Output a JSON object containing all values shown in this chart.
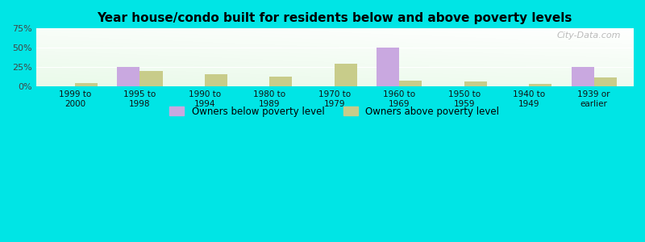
{
  "title": "Year house/condo built for residents below and above poverty levels",
  "categories": [
    "1999 to\n2000",
    "1995 to\n1998",
    "1990 to\n1994",
    "1980 to\n1989",
    "1970 to\n1979",
    "1960 to\n1969",
    "1950 to\n1959",
    "1940 to\n1949",
    "1939 or\nearlier"
  ],
  "below_poverty": [
    0,
    25,
    0,
    0,
    0,
    50,
    0,
    0,
    25
  ],
  "above_poverty": [
    5,
    20,
    16,
    13,
    29,
    8,
    7,
    3,
    12
  ],
  "below_color": "#c9a8e0",
  "above_color": "#c8cc8a",
  "ylim": [
    0,
    75
  ],
  "yticks": [
    0,
    25,
    50,
    75
  ],
  "yticklabels": [
    "0%",
    "25%",
    "50%",
    "75%"
  ],
  "outer_background": "#00e5e5",
  "bar_width": 0.35,
  "legend_below_label": "Owners below poverty level",
  "legend_above_label": "Owners above poverty level",
  "watermark": "City-Data.com"
}
